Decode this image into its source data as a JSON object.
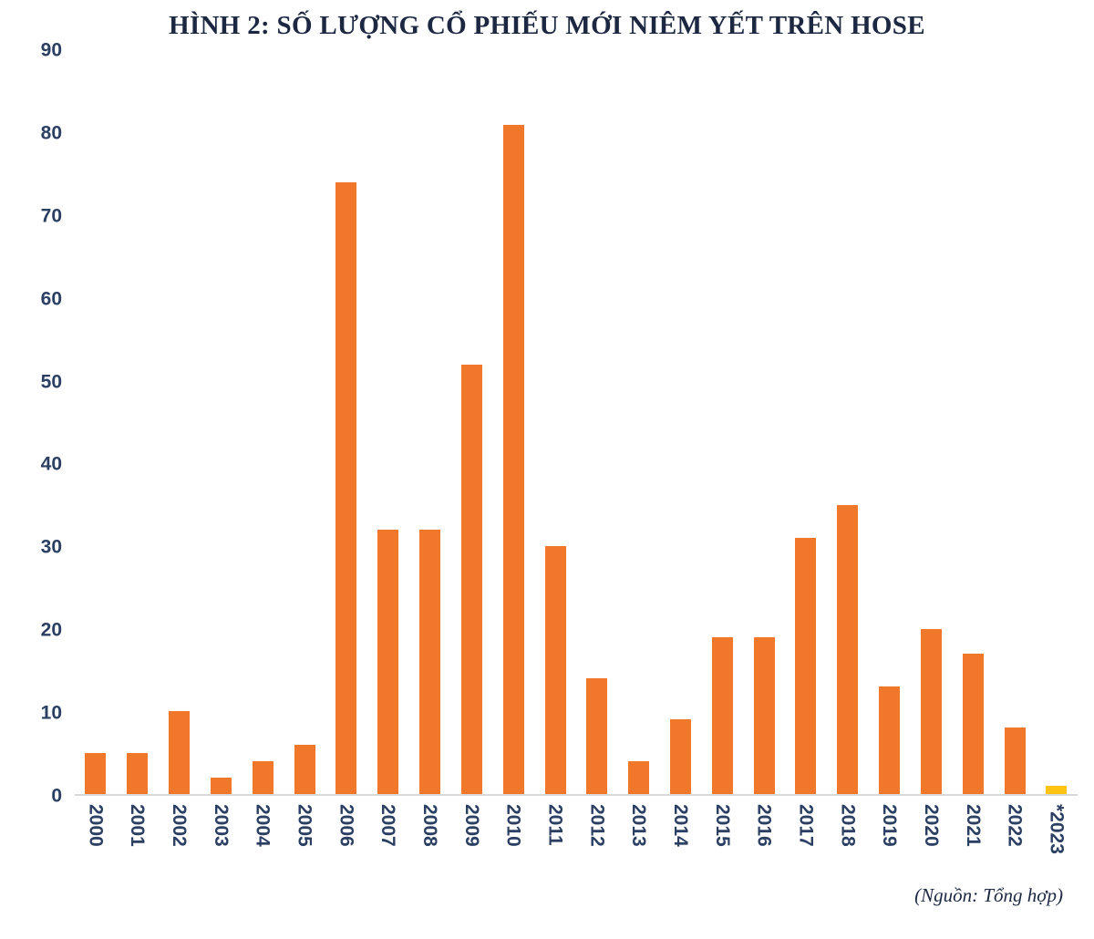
{
  "title": "HÌNH 2: SỐ LƯỢNG CỔ PHIẾU MỚI NIÊM YẾT TRÊN HOSE",
  "source": "(Nguồn: Tổng hợp)",
  "colors": {
    "bar": "#F1782A",
    "highlight_bar": "#FFC411",
    "axis_text": "#2b3f63",
    "title_text": "#1c2742",
    "axis_line": "#d9d9d9"
  },
  "chart_data": {
    "type": "bar",
    "title": "HÌNH 2: SỐ LƯỢNG CỔ PHIẾU MỚI NIÊM YẾT TRÊN HOSE",
    "categories": [
      "2000",
      "2001",
      "2002",
      "2003",
      "2004",
      "2005",
      "2006",
      "2007",
      "2008",
      "2009",
      "2010",
      "2011",
      "2012",
      "2013",
      "2014",
      "2015",
      "2016",
      "2017",
      "2018",
      "2019",
      "2020",
      "2021",
      "2022",
      "*2023"
    ],
    "values": [
      5,
      5,
      10,
      2,
      4,
      6,
      74,
      32,
      32,
      52,
      81,
      30,
      14,
      4,
      9,
      19,
      19,
      31,
      35,
      13,
      20,
      17,
      8,
      1
    ],
    "xlabel": "",
    "ylabel": "",
    "ylim": [
      0,
      90
    ],
    "yticks": [
      0,
      10,
      20,
      30,
      40,
      50,
      60,
      70,
      80,
      90
    ],
    "grid": false,
    "legend": false,
    "bar_color": "#F1782A",
    "highlight": {
      "category": "*2023",
      "color": "#FFC411"
    },
    "annotation": "(Nguồn: Tổng hợp)"
  }
}
